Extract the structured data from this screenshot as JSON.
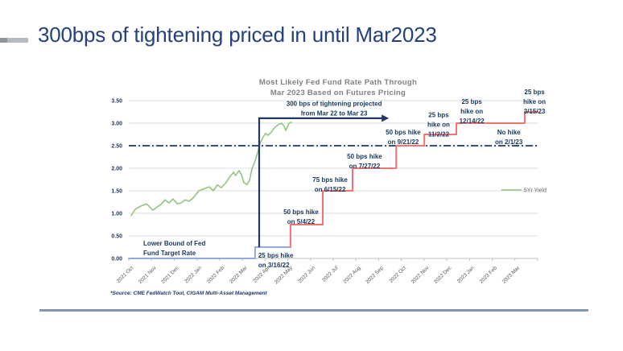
{
  "slide": {
    "title": "300bps of tightening priced in until Mar2023",
    "source_note": "*Source: CME FedWatch Tool, CIGAM Multi-Asset Management"
  },
  "colors": {
    "title_navy": "#24417C",
    "annotation_navy": "#17375E",
    "projection_navy": "#1F3864",
    "yield_green": "#94C47D",
    "actual_blue": "#8FAADC",
    "projected_red": "#F4736E",
    "gridline": "#DCDCDC",
    "axis_gray": "#BFBFBF",
    "chart_title_gray": "#808080",
    "tick_label_gray": "#595959",
    "divider_slate": "#8496B0"
  },
  "chart_data": {
    "type": "line",
    "title_lines": [
      "Most Likely Fed Fund Rate Path Through",
      "Mar 2023 Based on Futures Pricing"
    ],
    "x_unit": "months since Oct 2021",
    "x_categories": [
      "2021 Oct",
      "2021 Nov",
      "2021 Dec",
      "2022 Jan",
      "2022 Feb",
      "2022 Mar",
      "2022 Apr",
      "2022 May",
      "2022 Jun",
      "2022 Jul",
      "2022 Aug",
      "2022 Sep",
      "2022 Oct",
      "2022 Nov",
      "2022 Dec",
      "2023 Jan",
      "2023 Feb",
      "2023 Mar"
    ],
    "y_ticks": [
      "0.00",
      "0.50",
      "1.00",
      "1.50",
      "2.00",
      "2.50",
      "3.00",
      "3.50"
    ],
    "ylim": [
      0,
      3.5
    ],
    "grid": true,
    "legend": {
      "label": "5Yr Yield",
      "x": 16.4,
      "y": 1.52
    },
    "reference_line": {
      "y": 2.5,
      "style": "dash-dot"
    },
    "projection_bracket": {
      "x": 5.74,
      "x_arrow_end": 11.45,
      "y_top": 3.11,
      "y_bottom": 0.25
    },
    "series": [
      {
        "name": "5Yr Yield",
        "kind": "line",
        "color_key": "yield_green",
        "points": [
          [
            0.11,
            0.95
          ],
          [
            0.28,
            1.09
          ],
          [
            0.53,
            1.16
          ],
          [
            0.78,
            1.21
          ],
          [
            0.89,
            1.16
          ],
          [
            1.06,
            1.07
          ],
          [
            1.24,
            1.14
          ],
          [
            1.42,
            1.2
          ],
          [
            1.59,
            1.3
          ],
          [
            1.77,
            1.23
          ],
          [
            1.95,
            1.32
          ],
          [
            2.13,
            1.21
          ],
          [
            2.3,
            1.23
          ],
          [
            2.48,
            1.3
          ],
          [
            2.66,
            1.27
          ],
          [
            2.83,
            1.34
          ],
          [
            3.08,
            1.5
          ],
          [
            3.3,
            1.54
          ],
          [
            3.54,
            1.59
          ],
          [
            3.72,
            1.5
          ],
          [
            3.9,
            1.63
          ],
          [
            4.07,
            1.57
          ],
          [
            4.25,
            1.66
          ],
          [
            4.43,
            1.8
          ],
          [
            4.61,
            1.91
          ],
          [
            4.71,
            1.84
          ],
          [
            4.85,
            1.95
          ],
          [
            4.96,
            1.86
          ],
          [
            5.07,
            1.68
          ],
          [
            5.21,
            1.64
          ],
          [
            5.31,
            1.73
          ],
          [
            5.42,
            1.98
          ],
          [
            5.56,
            2.16
          ],
          [
            5.67,
            2.34
          ],
          [
            5.78,
            2.55
          ],
          [
            5.92,
            2.7
          ],
          [
            6.02,
            2.77
          ],
          [
            6.13,
            2.73
          ],
          [
            6.27,
            2.8
          ],
          [
            6.38,
            2.88
          ],
          [
            6.49,
            2.93
          ],
          [
            6.63,
            2.98
          ],
          [
            6.73,
            3.0
          ],
          [
            6.84,
            2.93
          ],
          [
            6.91,
            2.84
          ],
          [
            6.98,
            2.91
          ],
          [
            7.05,
            3.0
          ],
          [
            7.16,
            3.02
          ]
        ]
      },
      {
        "name": "Lower Bound of Fed Fund Target Rate (actual)",
        "kind": "step",
        "color_key": "actual_blue",
        "points": [
          [
            0,
            0
          ],
          [
            5.56,
            0
          ],
          [
            5.56,
            0.25
          ],
          [
            7.12,
            0.25
          ]
        ]
      },
      {
        "name": "Projected Fed Fund Rate Path",
        "kind": "step",
        "color_key": "projected_red",
        "points": [
          [
            7.12,
            0.25
          ],
          [
            7.12,
            0.75
          ],
          [
            8.54,
            0.75
          ],
          [
            8.54,
            1.5
          ],
          [
            9.85,
            1.5
          ],
          [
            9.85,
            2.0
          ],
          [
            11.77,
            2.0
          ],
          [
            11.77,
            2.5
          ],
          [
            13.01,
            2.5
          ],
          [
            13.01,
            2.75
          ],
          [
            14.42,
            2.75
          ],
          [
            14.42,
            3.0
          ],
          [
            17.43,
            3.0
          ],
          [
            17.43,
            3.25
          ],
          [
            18,
            3.25
          ]
        ]
      }
    ],
    "annotations": [
      {
        "lines": [
          "300 bps of tightening projected",
          "from Mar 22 to Mar 23"
        ],
        "x": 9.04,
        "y": 3.38,
        "anchor": "middle"
      },
      {
        "lines": [
          "25 bps hike",
          "on 3/16/22"
        ],
        "x": 5.7,
        "y": 0.02,
        "anchor": "start"
      },
      {
        "lines": [
          "50 bps hike",
          "on 5/4/22"
        ],
        "x": 7.58,
        "y": 0.98,
        "anchor": "middle"
      },
      {
        "lines": [
          "75 bps hike",
          "on 6/15/22"
        ],
        "x": 8.86,
        "y": 1.7,
        "anchor": "middle"
      },
      {
        "lines": [
          "50 bps hike",
          "on 7/27/22"
        ],
        "x": 10.38,
        "y": 2.21,
        "anchor": "middle"
      },
      {
        "lines": [
          "50 bps hike",
          "on 9/21/22"
        ],
        "x": 12.08,
        "y": 2.75,
        "anchor": "middle"
      },
      {
        "lines": [
          "25 bps",
          "hike on",
          "11/2/22"
        ],
        "x": 13.64,
        "y": 3.13,
        "anchor": "middle"
      },
      {
        "lines": [
          "25 bps",
          "hike on",
          "12/14/22"
        ],
        "x": 15.1,
        "y": 3.43,
        "anchor": "middle"
      },
      {
        "lines": [
          "No hike",
          "on 2/1/23"
        ],
        "x": 16.73,
        "y": 2.75,
        "anchor": "middle"
      },
      {
        "lines": [
          "25 bps",
          "hike on",
          "3/15/23"
        ],
        "x": 17.86,
        "y": 3.64,
        "anchor": "middle"
      },
      {
        "lines": [
          "Lower Bound of Fed",
          "Fund Target Rate"
        ],
        "x": 0.64,
        "y": 0.29,
        "anchor": "start"
      }
    ]
  }
}
